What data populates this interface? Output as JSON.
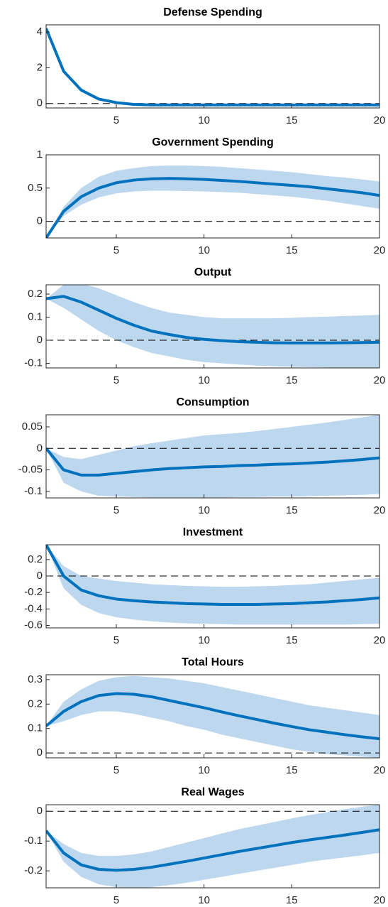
{
  "chart_data": [
    {
      "type": "line",
      "title": "Defense Spending",
      "x": [
        1,
        2,
        3,
        4,
        5,
        6,
        7,
        8,
        9,
        10,
        11,
        12,
        13,
        14,
        15,
        16,
        17,
        18,
        19,
        20
      ],
      "values": [
        4.2,
        1.8,
        0.75,
        0.25,
        0.05,
        -0.05,
        -0.08,
        -0.08,
        -0.08,
        -0.08,
        -0.08,
        -0.08,
        -0.08,
        -0.08,
        -0.08,
        -0.08,
        -0.08,
        -0.08,
        -0.08,
        -0.08
      ],
      "lower": [
        4.2,
        1.7,
        0.65,
        0.18,
        0.0,
        -0.1,
        -0.12,
        -0.12,
        -0.12,
        -0.12,
        -0.12,
        -0.12,
        -0.12,
        -0.12,
        -0.12,
        -0.12,
        -0.12,
        -0.12,
        -0.12,
        -0.12
      ],
      "upper": [
        4.2,
        1.9,
        0.85,
        0.33,
        0.1,
        0.0,
        -0.04,
        -0.04,
        -0.04,
        -0.04,
        -0.04,
        -0.04,
        -0.04,
        -0.04,
        -0.04,
        -0.04,
        -0.04,
        -0.04,
        -0.04,
        -0.04
      ],
      "color": "#0072bd",
      "band_color": "#bcd7ee",
      "hline": 0,
      "xlim": [
        1,
        20
      ],
      "xticks": [
        5,
        10,
        15,
        20
      ],
      "ylim": [
        -0.25,
        4.4
      ],
      "yticks": [
        0,
        2,
        4
      ]
    },
    {
      "type": "line",
      "title": "Government Spending",
      "x": [
        1,
        2,
        3,
        4,
        5,
        6,
        7,
        8,
        9,
        10,
        11,
        12,
        13,
        14,
        15,
        16,
        17,
        18,
        19,
        20
      ],
      "values": [
        -0.25,
        0.15,
        0.37,
        0.5,
        0.58,
        0.62,
        0.64,
        0.645,
        0.64,
        0.63,
        0.615,
        0.6,
        0.58,
        0.56,
        0.54,
        0.52,
        0.49,
        0.46,
        0.43,
        0.39
      ],
      "lower": [
        -0.25,
        0.08,
        0.25,
        0.36,
        0.42,
        0.45,
        0.46,
        0.46,
        0.455,
        0.45,
        0.44,
        0.43,
        0.41,
        0.39,
        0.37,
        0.34,
        0.31,
        0.27,
        0.23,
        0.19
      ],
      "upper": [
        -0.25,
        0.22,
        0.5,
        0.67,
        0.76,
        0.8,
        0.83,
        0.84,
        0.84,
        0.83,
        0.82,
        0.8,
        0.78,
        0.76,
        0.74,
        0.71,
        0.68,
        0.66,
        0.63,
        0.6
      ],
      "color": "#0072bd",
      "band_color": "#bcd7ee",
      "hline": 0,
      "xlim": [
        1,
        20
      ],
      "xticks": [
        5,
        10,
        15,
        20
      ],
      "ylim": [
        -0.25,
        1
      ],
      "yticks": [
        0,
        0.5,
        1
      ]
    },
    {
      "type": "line",
      "title": "Output",
      "x": [
        1,
        2,
        3,
        4,
        5,
        6,
        7,
        8,
        9,
        10,
        11,
        12,
        13,
        14,
        15,
        16,
        17,
        18,
        19,
        20
      ],
      "values": [
        0.18,
        0.19,
        0.165,
        0.13,
        0.095,
        0.065,
        0.04,
        0.025,
        0.012,
        0.004,
        -0.002,
        -0.006,
        -0.009,
        -0.011,
        -0.012,
        -0.012,
        -0.012,
        -0.011,
        -0.01,
        -0.009
      ],
      "lower": [
        0.18,
        0.14,
        0.09,
        0.04,
        0.0,
        -0.03,
        -0.055,
        -0.07,
        -0.085,
        -0.095,
        -0.1,
        -0.105,
        -0.11,
        -0.113,
        -0.115,
        -0.117,
        -0.118,
        -0.119,
        -0.12,
        -0.12
      ],
      "upper": [
        0.18,
        0.24,
        0.245,
        0.225,
        0.195,
        0.165,
        0.14,
        0.12,
        0.11,
        0.1,
        0.095,
        0.095,
        0.095,
        0.095,
        0.097,
        0.1,
        0.102,
        0.105,
        0.107,
        0.11
      ],
      "color": "#0072bd",
      "band_color": "#bcd7ee",
      "hline": 0,
      "xlim": [
        1,
        20
      ],
      "xticks": [
        5,
        10,
        15,
        20
      ],
      "ylim": [
        -0.12,
        0.24
      ],
      "yticks": [
        -0.1,
        0,
        0.1,
        0.2
      ]
    },
    {
      "type": "line",
      "title": "Consumption",
      "x": [
        1,
        2,
        3,
        4,
        5,
        6,
        7,
        8,
        9,
        10,
        11,
        12,
        13,
        14,
        15,
        16,
        17,
        18,
        19,
        20
      ],
      "values": [
        0,
        -0.05,
        -0.062,
        -0.062,
        -0.058,
        -0.054,
        -0.05,
        -0.047,
        -0.045,
        -0.043,
        -0.042,
        -0.04,
        -0.039,
        -0.037,
        -0.036,
        -0.034,
        -0.032,
        -0.029,
        -0.026,
        -0.022
      ],
      "lower": [
        0,
        -0.08,
        -0.1,
        -0.11,
        -0.112,
        -0.113,
        -0.114,
        -0.114,
        -0.114,
        -0.114,
        -0.114,
        -0.113,
        -0.113,
        -0.112,
        -0.112,
        -0.111,
        -0.11,
        -0.109,
        -0.108,
        -0.106
      ],
      "upper": [
        0,
        -0.02,
        -0.025,
        -0.015,
        -0.005,
        0.005,
        0.012,
        0.018,
        0.024,
        0.03,
        0.033,
        0.036,
        0.04,
        0.045,
        0.05,
        0.055,
        0.06,
        0.066,
        0.072,
        0.078
      ],
      "color": "#0072bd",
      "band_color": "#bcd7ee",
      "hline": 0,
      "xlim": [
        1,
        20
      ],
      "xticks": [
        5,
        10,
        15,
        20
      ],
      "ylim": [
        -0.115,
        0.078
      ],
      "yticks": [
        -0.1,
        -0.05,
        0,
        0.05
      ]
    },
    {
      "type": "line",
      "title": "Investment",
      "x": [
        1,
        2,
        3,
        4,
        5,
        6,
        7,
        8,
        9,
        10,
        11,
        12,
        13,
        14,
        15,
        16,
        17,
        18,
        19,
        20
      ],
      "values": [
        0.38,
        0.0,
        -0.17,
        -0.24,
        -0.28,
        -0.3,
        -0.315,
        -0.325,
        -0.335,
        -0.34,
        -0.345,
        -0.345,
        -0.345,
        -0.34,
        -0.335,
        -0.325,
        -0.315,
        -0.3,
        -0.285,
        -0.265
      ],
      "lower": [
        0.38,
        -0.15,
        -0.35,
        -0.45,
        -0.5,
        -0.53,
        -0.55,
        -0.565,
        -0.575,
        -0.58,
        -0.585,
        -0.59,
        -0.59,
        -0.59,
        -0.59,
        -0.59,
        -0.59,
        -0.59,
        -0.585,
        -0.58
      ],
      "upper": [
        0.38,
        0.12,
        0.0,
        -0.03,
        -0.06,
        -0.08,
        -0.1,
        -0.11,
        -0.12,
        -0.125,
        -0.13,
        -0.13,
        -0.125,
        -0.12,
        -0.11,
        -0.1,
        -0.08,
        -0.06,
        -0.04,
        -0.02
      ],
      "color": "#0072bd",
      "band_color": "#bcd7ee",
      "hline": 0,
      "xlim": [
        1,
        20
      ],
      "xticks": [
        5,
        10,
        15,
        20
      ],
      "ylim": [
        -0.63,
        0.38
      ],
      "yticks": [
        -0.6,
        -0.4,
        -0.2,
        0,
        0.2
      ]
    },
    {
      "type": "line",
      "title": "Total Hours",
      "x": [
        1,
        2,
        3,
        4,
        5,
        6,
        7,
        8,
        9,
        10,
        11,
        12,
        13,
        14,
        15,
        16,
        17,
        18,
        19,
        20
      ],
      "values": [
        0.11,
        0.17,
        0.21,
        0.235,
        0.243,
        0.24,
        0.23,
        0.215,
        0.2,
        0.185,
        0.168,
        0.152,
        0.137,
        0.122,
        0.108,
        0.095,
        0.085,
        0.075,
        0.066,
        0.058
      ],
      "lower": [
        0.11,
        0.13,
        0.155,
        0.17,
        0.17,
        0.16,
        0.145,
        0.13,
        0.11,
        0.095,
        0.075,
        0.06,
        0.045,
        0.03,
        0.015,
        0.005,
        -0.005,
        -0.01,
        -0.015,
        -0.02
      ],
      "upper": [
        0.11,
        0.21,
        0.26,
        0.295,
        0.31,
        0.315,
        0.31,
        0.305,
        0.295,
        0.285,
        0.27,
        0.255,
        0.24,
        0.225,
        0.21,
        0.195,
        0.185,
        0.175,
        0.165,
        0.155
      ],
      "color": "#0072bd",
      "band_color": "#bcd7ee",
      "hline": 0,
      "xlim": [
        1,
        20
      ],
      "xticks": [
        5,
        10,
        15,
        20
      ],
      "ylim": [
        -0.02,
        0.32
      ],
      "yticks": [
        0,
        0.1,
        0.2,
        0.3
      ]
    },
    {
      "type": "line",
      "title": "Real Wages",
      "x": [
        1,
        2,
        3,
        4,
        5,
        6,
        7,
        8,
        9,
        10,
        11,
        12,
        13,
        14,
        15,
        16,
        17,
        18,
        19,
        20
      ],
      "values": [
        -0.065,
        -0.14,
        -0.18,
        -0.195,
        -0.198,
        -0.195,
        -0.188,
        -0.178,
        -0.168,
        -0.157,
        -0.146,
        -0.135,
        -0.125,
        -0.115,
        -0.105,
        -0.096,
        -0.088,
        -0.08,
        -0.071,
        -0.062
      ],
      "lower": [
        -0.065,
        -0.17,
        -0.22,
        -0.245,
        -0.255,
        -0.257,
        -0.255,
        -0.248,
        -0.24,
        -0.23,
        -0.22,
        -0.21,
        -0.2,
        -0.19,
        -0.18,
        -0.17,
        -0.162,
        -0.155,
        -0.148,
        -0.14
      ],
      "upper": [
        -0.065,
        -0.11,
        -0.14,
        -0.15,
        -0.15,
        -0.145,
        -0.135,
        -0.12,
        -0.105,
        -0.09,
        -0.075,
        -0.06,
        -0.048,
        -0.036,
        -0.024,
        -0.013,
        -0.003,
        0.007,
        0.015,
        0.022
      ],
      "color": "#0072bd",
      "band_color": "#bcd7ee",
      "hline": 0,
      "xlim": [
        1,
        20
      ],
      "xticks": [
        5,
        10,
        15,
        20
      ],
      "ylim": [
        -0.257,
        0.022
      ],
      "yticks": [
        -0.2,
        -0.1,
        0
      ]
    }
  ]
}
